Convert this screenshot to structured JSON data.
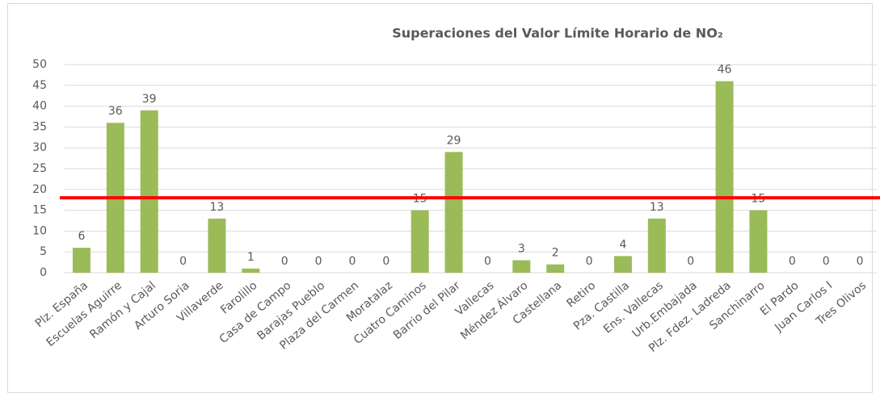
{
  "chart_data": {
    "type": "bar",
    "title": "Superaciones del Valor Límite Horario de NO₂",
    "categories": [
      "Plz. España",
      "Escuelas Aguirre",
      "Ramón y Cajal",
      "Arturo Soria",
      "Villaverde",
      "Farolillo",
      "Casa de Campo",
      "Barajas Pueblo",
      "Plaza del Carmen",
      "Moratalaz",
      "Cuatro Caminos",
      "Barrio del Pilar",
      "Vallecas",
      "Méndez Álvaro",
      "Castellana",
      "Retiro",
      "Pza. Castilla",
      "Ens. Vallecas",
      "Urb.Embajada",
      "Plz. Fdez. Ladreda",
      "Sanchinarro",
      "El Pardo",
      "Juan Carlos I",
      "Tres Olivos"
    ],
    "values": [
      6,
      36,
      39,
      0,
      13,
      1,
      0,
      0,
      0,
      0,
      15,
      29,
      0,
      3,
      2,
      0,
      4,
      13,
      0,
      46,
      15,
      0,
      0,
      0
    ],
    "color": "#9bbb59",
    "ylim": [
      0,
      50
    ],
    "yticks": [
      0,
      5,
      10,
      15,
      20,
      25,
      30,
      35,
      40,
      45,
      50
    ],
    "grid": true,
    "reference_line": {
      "value": 18,
      "color": "#ff0000"
    }
  }
}
